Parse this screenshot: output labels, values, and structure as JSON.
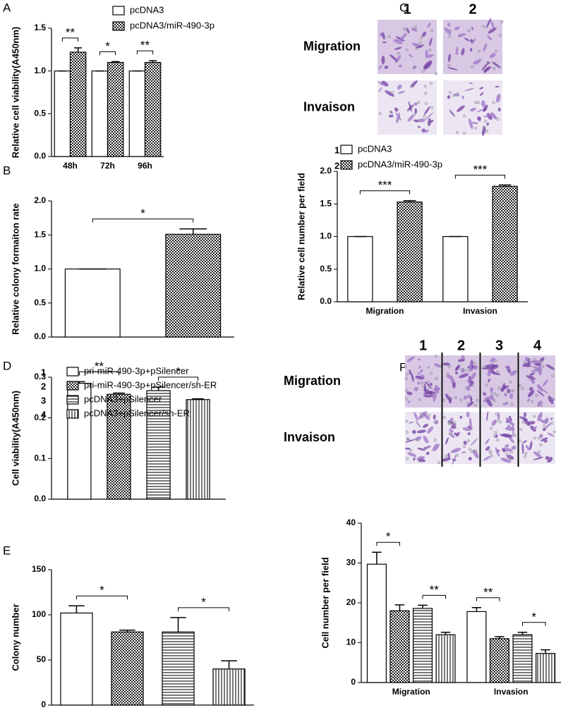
{
  "panel_labels": [
    "A",
    "B",
    "C",
    "D",
    "E",
    "F"
  ],
  "micrographs": [
    {
      "columns": [
        "1",
        "2"
      ],
      "rows": [
        "Migration",
        "Invaison"
      ]
    },
    {
      "columns": [
        "1",
        "2",
        "3",
        "4"
      ],
      "rows": [
        "Migration",
        "Invaison"
      ]
    }
  ],
  "chart_data": [
    {
      "type": "bar",
      "ylabel": "Relative cell viability(A450nm)",
      "categories": [
        "48h",
        "72h",
        "96h"
      ],
      "series": [
        {
          "name": "pcDNA3",
          "pattern": "none",
          "values": [
            1,
            1,
            1
          ],
          "errors": [
            0,
            0,
            0
          ]
        },
        {
          "name": "pcDNA3/miR-490-3p",
          "pattern": "dots",
          "values": [
            1.22,
            1.1,
            1.1
          ],
          "errors": [
            0.05,
            0.01,
            0.02
          ]
        }
      ],
      "ylim": [
        0,
        1.5
      ],
      "yticks": [
        {
          "value": 0,
          "label": "0.0"
        },
        {
          "value": 0.5,
          "label": "0.5"
        },
        {
          "value": 1,
          "label": "1.0"
        },
        {
          "value": 1.5,
          "label": "1.5"
        }
      ],
      "significance": [
        [
          "**"
        ],
        [
          "*"
        ],
        [
          "**"
        ]
      ]
    },
    {
      "type": "bar",
      "ylabel": "Relative colony formaiton rate",
      "categories": [
        null
      ],
      "series": [
        {
          "pattern": "none",
          "values": [
            1
          ],
          "errors": [
            0
          ]
        },
        {
          "pattern": "dots",
          "values": [
            1.51
          ],
          "errors": [
            0.08
          ]
        }
      ],
      "ylim": [
        0,
        2
      ],
      "yticks": [
        {
          "value": 0,
          "label": "0.0"
        },
        {
          "value": 0.5,
          "label": "0.5"
        },
        {
          "value": 1,
          "label": "1.0"
        },
        {
          "value": 1.5,
          "label": "1.5"
        },
        {
          "value": 2,
          "label": "2.0"
        }
      ],
      "significance": [
        [
          "*"
        ]
      ]
    },
    {
      "type": "bar",
      "ylabel": "Relative cell number per field",
      "categories": [
        "Migration",
        "Invasion"
      ],
      "series": [
        {
          "name": "pcDNA3",
          "number": "1",
          "pattern": "none",
          "values": [
            1,
            1
          ],
          "errors": [
            0,
            0
          ]
        },
        {
          "name": "pcDNA3/miR-490-3p",
          "number": "2",
          "pattern": "dots",
          "values": [
            1.53,
            1.77
          ],
          "errors": [
            0.02,
            0.02
          ]
        }
      ],
      "ylim": [
        0,
        2
      ],
      "yticks": [
        {
          "value": 0,
          "label": "0.0"
        },
        {
          "value": 0.5,
          "label": "0.5"
        },
        {
          "value": 1,
          "label": "1.0"
        },
        {
          "value": 1.5,
          "label": "1.5"
        },
        {
          "value": 2,
          "label": "2.0"
        }
      ],
      "significance": [
        [
          "***"
        ],
        [
          "***"
        ]
      ]
    },
    {
      "type": "bar",
      "ylabel": "Cell viability(A450nm)",
      "categories": [
        null
      ],
      "series": [
        {
          "name": "pri-miR-490-3p+pSilencer",
          "number": "1",
          "pattern": "none",
          "values": [
            0.285
          ],
          "errors": [
            0.004
          ]
        },
        {
          "name": "pri-miR-490-3p+pSilencer/sh-ER",
          "number": "2",
          "pattern": "dots",
          "values": [
            0.258
          ],
          "errors": [
            0.003
          ]
        },
        {
          "name": "pcDNA3+pSilencer",
          "number": "3",
          "pattern": "hlines",
          "values": [
            0.267
          ],
          "errors": [
            0.009
          ]
        },
        {
          "name": "pcDNA3+pSilencer/sh-ER",
          "number": "4",
          "pattern": "vlines",
          "values": [
            0.245
          ],
          "errors": [
            0.002
          ]
        }
      ],
      "ylim": [
        0,
        0.3
      ],
      "yticks": [
        {
          "value": 0,
          "label": "0.0"
        },
        0.1,
        0.2,
        0.3
      ],
      "significance": [
        [
          "**",
          "*"
        ]
      ]
    },
    {
      "type": "bar",
      "ylabel": "Colony number",
      "categories": [
        null
      ],
      "series": [
        {
          "pattern": "none",
          "values": [
            102
          ],
          "errors": [
            8
          ]
        },
        {
          "pattern": "dots",
          "values": [
            81
          ],
          "errors": [
            2
          ]
        },
        {
          "pattern": "hlines",
          "values": [
            81
          ],
          "errors": [
            16
          ]
        },
        {
          "pattern": "vlines",
          "values": [
            40
          ],
          "errors": [
            9
          ]
        }
      ],
      "ylim": [
        0,
        150
      ],
      "yticks": [
        0,
        50,
        100,
        150
      ],
      "significance": [
        [
          "*",
          "*"
        ]
      ]
    },
    {
      "type": "bar",
      "ylabel": "Cell number per field",
      "categories": [
        "Migration",
        "Invasion"
      ],
      "series": [
        {
          "pattern": "none",
          "values": [
            29.7,
            17.8
          ],
          "errors": [
            3,
            1
          ]
        },
        {
          "pattern": "dots",
          "values": [
            18,
            11
          ],
          "errors": [
            1.5,
            0.5
          ]
        },
        {
          "pattern": "hlines",
          "values": [
            18.6,
            12
          ],
          "errors": [
            0.8,
            0.6
          ]
        },
        {
          "pattern": "vlines",
          "values": [
            12,
            7.3
          ],
          "errors": [
            0.6,
            0.9
          ]
        }
      ],
      "ylim": [
        0,
        40
      ],
      "yticks": [
        0,
        10,
        20,
        30,
        40
      ],
      "significance": [
        [
          "*",
          "**"
        ],
        [
          "**",
          "*"
        ]
      ]
    }
  ]
}
